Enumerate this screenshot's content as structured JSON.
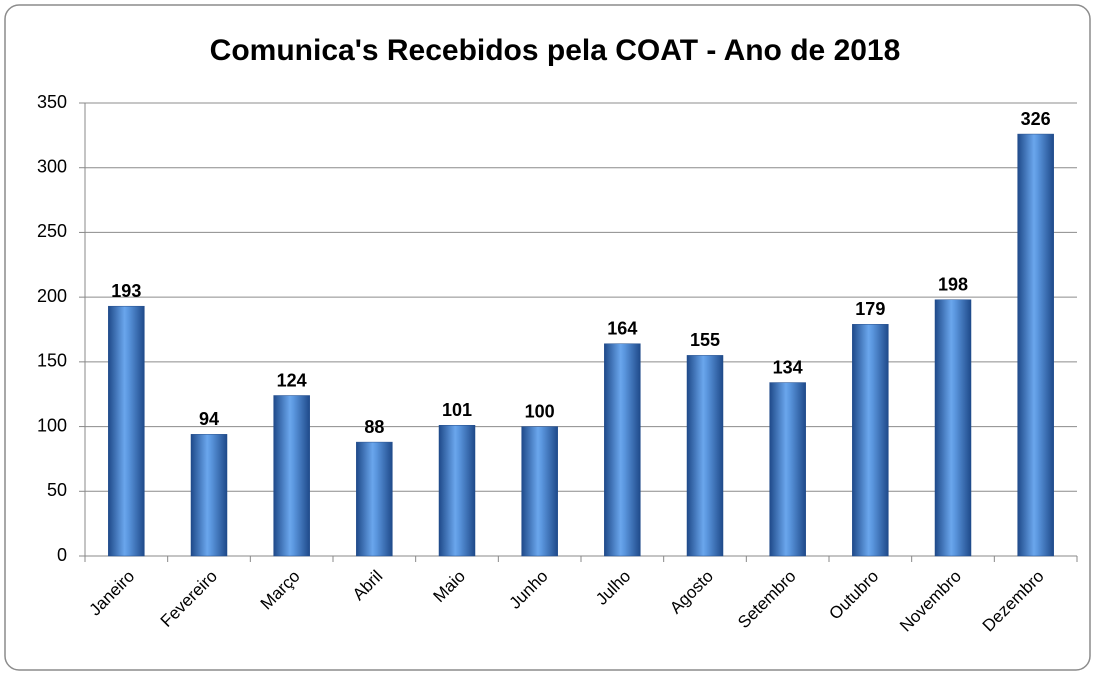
{
  "chart_data": {
    "type": "bar",
    "title": "Comunica's Recebidos pela COAT - Ano de 2018",
    "categories": [
      "Janeiro",
      "Fevereiro",
      "Março",
      "Abril",
      "Maio",
      "Junho",
      "Julho",
      "Agosto",
      "Setembro",
      "Outubro",
      "Novembro",
      "Dezembro"
    ],
    "values": [
      193,
      94,
      124,
      88,
      101,
      100,
      164,
      155,
      134,
      179,
      198,
      326
    ],
    "color": "#3a70c0",
    "ylim": [
      0,
      350
    ],
    "yticks": [
      0,
      50,
      100,
      150,
      200,
      250,
      300,
      350
    ],
    "grid": true
  }
}
